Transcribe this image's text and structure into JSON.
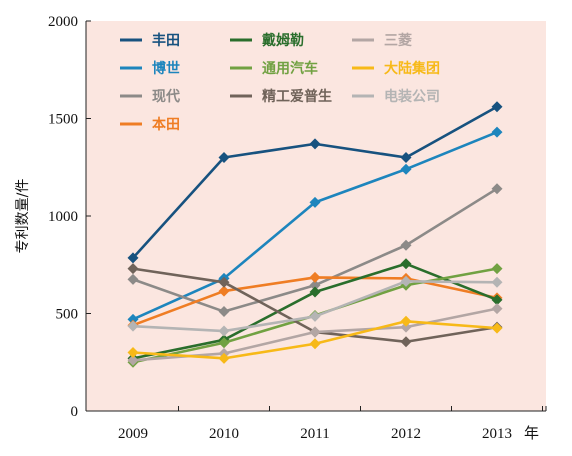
{
  "chart_data": {
    "type": "line",
    "ylabel": "专利数量/件",
    "xunit": "年",
    "categories": [
      "2009",
      "2010",
      "2011",
      "2012",
      "2013"
    ],
    "ylim": [
      0,
      2000
    ],
    "yticks": [
      "0",
      "500",
      "1000",
      "1500",
      "2000"
    ],
    "grid": false,
    "background": "#fbe6e0",
    "legend_position": "top",
    "series": [
      {
        "name": "丰田",
        "color": "#17527f",
        "marker": "diamond",
        "values": [
          785,
          1300,
          1370,
          1300,
          1560
        ]
      },
      {
        "name": "博世",
        "color": "#1d85bd",
        "marker": "diamond",
        "values": [
          470,
          680,
          1070,
          1240,
          1430
        ]
      },
      {
        "name": "现代",
        "color": "#8c8a88",
        "marker": "diamond",
        "values": [
          675,
          510,
          645,
          850,
          1140
        ]
      },
      {
        "name": "本田",
        "color": "#ef7d24",
        "marker": "diamond",
        "values": [
          440,
          615,
          685,
          680,
          580
        ]
      },
      {
        "name": "戴姆勒",
        "color": "#2a6e2c",
        "marker": "diamond",
        "values": [
          270,
          365,
          610,
          755,
          570
        ]
      },
      {
        "name": "通用汽车",
        "color": "#71a142",
        "marker": "diamond",
        "values": [
          250,
          350,
          490,
          645,
          730
        ]
      },
      {
        "name": "精工爱普生",
        "color": "#70635a",
        "marker": "diamond",
        "values": [
          730,
          660,
          405,
          355,
          430
        ]
      },
      {
        "name": "三菱",
        "color": "#b3a6a4",
        "marker": "diamond",
        "values": [
          260,
          295,
          405,
          430,
          525
        ]
      },
      {
        "name": "大陆集团",
        "color": "#f7b918",
        "marker": "diamond",
        "values": [
          300,
          270,
          345,
          460,
          425
        ]
      },
      {
        "name": "电装公司",
        "color": "#b4b4b4",
        "marker": "diamond",
        "values": [
          435,
          410,
          485,
          665,
          660
        ]
      }
    ]
  }
}
